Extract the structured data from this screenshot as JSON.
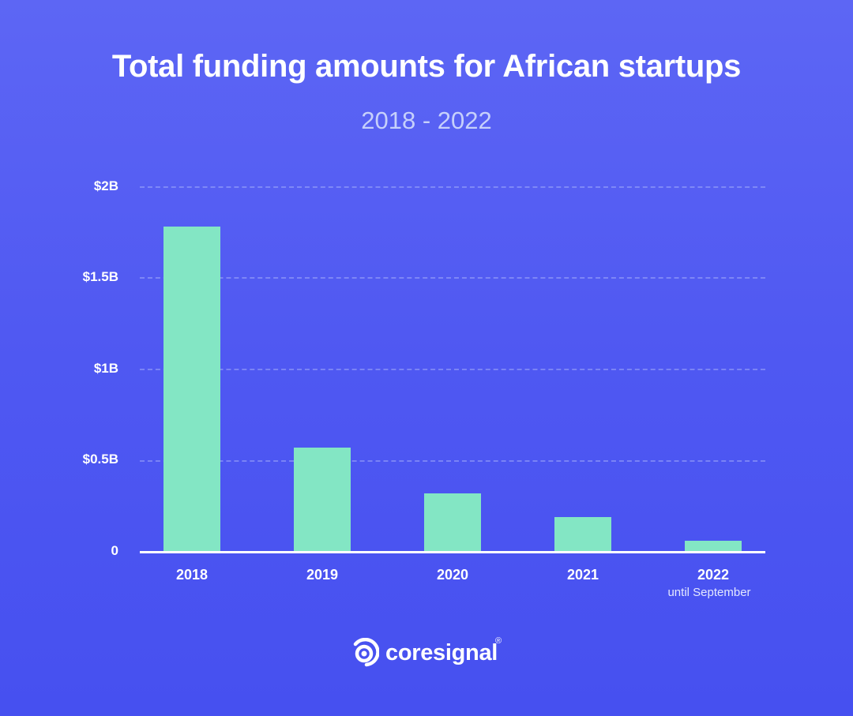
{
  "header": {
    "title": "Total funding amounts for African startups",
    "subtitle": "2018 - 2022"
  },
  "colors": {
    "background_top": "#5d66f4",
    "background_bottom": "#4650f0",
    "bar": "#83e6c4",
    "text": "#ffffff",
    "subtitle": "#c6d0fb"
  },
  "axis": {
    "y_ticks": [
      "0",
      "$0.5B",
      "$1B",
      "$1.5B",
      "$2B"
    ],
    "x_ticks": [
      "2018",
      "2019",
      "2020",
      "2021",
      "2022"
    ],
    "x_note_2022": "until September"
  },
  "logo": {
    "text": "coresignal",
    "registered": "®"
  },
  "chart_data": {
    "type": "bar",
    "title": "Total funding amounts for African startups",
    "subtitle": "2018 - 2022",
    "categories": [
      "2018",
      "2019",
      "2020",
      "2021",
      "2022 (until September)"
    ],
    "values": [
      1.78,
      0.57,
      0.32,
      0.19,
      0.06
    ],
    "unit": "USD billions",
    "xlabel": "",
    "ylabel": "",
    "ylim": [
      0,
      2
    ],
    "yticks": [
      0,
      0.5,
      1,
      1.5,
      2
    ],
    "ytick_labels": [
      "0",
      "$0.5B",
      "$1B",
      "$1.5B",
      "$2B"
    ],
    "grid": "horizontal dashed",
    "legend": "none"
  }
}
